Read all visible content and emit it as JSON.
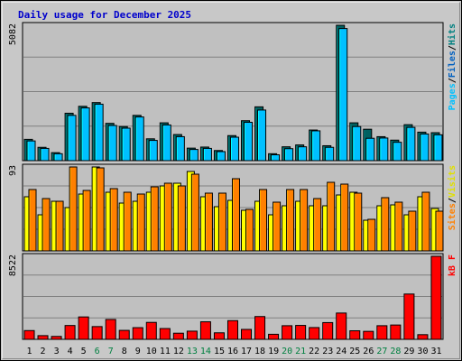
{
  "title": "Daily usage for December 2025",
  "colors": {
    "pages": "#00c0ff",
    "files": "#00a0a0",
    "hits": "#006060",
    "sites": "#ffff00",
    "visits": "#ff8000",
    "kbytes": "#ff0000",
    "day_weekend": "#008040",
    "day_weekday": "#000000",
    "title": "#0000cc"
  },
  "chart_data": [
    {
      "type": "bar",
      "panel": "hits",
      "ymax_label": "5082",
      "ylim": [
        0,
        5082
      ],
      "legend": [
        {
          "label": "Pages",
          "color": "#00c0ff"
        },
        {
          "label": "/",
          "color": "#000000"
        },
        {
          "label": "Files",
          "color": "#0060c0"
        },
        {
          "label": "/",
          "color": "#000000"
        },
        {
          "label": "Hits",
          "color": "#008080"
        }
      ],
      "categories": [
        "1",
        "2",
        "3",
        "4",
        "5",
        "6",
        "7",
        "8",
        "9",
        "10",
        "11",
        "12",
        "13",
        "14",
        "15",
        "16",
        "17",
        "18",
        "19",
        "20",
        "21",
        "22",
        "23",
        "24",
        "25",
        "26",
        "27",
        "28",
        "29",
        "30",
        "31"
      ],
      "series": [
        {
          "name": "Hits",
          "values": [
            800,
            500,
            300,
            1780,
            2040,
            2180,
            1400,
            1280,
            1700,
            820,
            1420,
            980,
            470,
            510,
            380,
            940,
            1500,
            2020,
            260,
            520,
            590,
            1150,
            560,
            5082,
            1420,
            1180,
            900,
            770,
            1350,
            1070,
            1050
          ]
        },
        {
          "name": "Files",
          "values": [
            740,
            460,
            260,
            1700,
            1980,
            2120,
            1320,
            1220,
            1640,
            760,
            1340,
            900,
            420,
            460,
            340,
            880,
            1440,
            1900,
            220,
            450,
            520,
            1120,
            500,
            4960,
            1280,
            840,
            850,
            690,
            1250,
            1000,
            970
          ]
        }
      ]
    },
    {
      "type": "bar",
      "panel": "visits",
      "ymax_label": "93",
      "ylim": [
        0,
        93
      ],
      "legend": [
        {
          "label": "Sites",
          "color": "#ff8000"
        },
        {
          "label": "/",
          "color": "#000000"
        },
        {
          "label": "Visits",
          "color": "#e0e000"
        }
      ],
      "categories": [
        "1",
        "2",
        "3",
        "4",
        "5",
        "6",
        "7",
        "8",
        "9",
        "10",
        "11",
        "12",
        "13",
        "14",
        "15",
        "16",
        "17",
        "18",
        "19",
        "20",
        "21",
        "22",
        "23",
        "24",
        "25",
        "26",
        "27",
        "28",
        "29",
        "30",
        "31"
      ],
      "series": [
        {
          "name": "Visits",
          "values": [
            60,
            40,
            55,
            48,
            63,
            93,
            65,
            53,
            55,
            65,
            72,
            75,
            88,
            60,
            49,
            56,
            45,
            55,
            40,
            50,
            55,
            50,
            50,
            62,
            65,
            34,
            50,
            51,
            40,
            60,
            47
          ]
        },
        {
          "name": "Sites",
          "values": [
            68,
            58,
            55,
            93,
            67,
            92,
            69,
            65,
            63,
            71,
            75,
            72,
            85,
            64,
            64,
            80,
            46,
            68,
            54,
            68,
            68,
            58,
            76,
            74,
            64,
            35,
            59,
            54,
            44,
            65,
            44
          ]
        }
      ]
    },
    {
      "type": "bar",
      "panel": "kbytes",
      "ymax_label": "8522",
      "ylim": [
        0,
        8522
      ],
      "legend": [
        {
          "label": "kB F",
          "color": "#ff0000"
        }
      ],
      "categories": [
        "1",
        "2",
        "3",
        "4",
        "5",
        "6",
        "7",
        "8",
        "9",
        "10",
        "11",
        "12",
        "13",
        "14",
        "15",
        "16",
        "17",
        "18",
        "19",
        "20",
        "21",
        "22",
        "23",
        "24",
        "25",
        "26",
        "27",
        "28",
        "29",
        "30",
        "31"
      ],
      "series": [
        {
          "name": "kB F",
          "values": [
            900,
            380,
            300,
            1420,
            2300,
            1310,
            2040,
            920,
            1200,
            1740,
            1110,
            630,
            840,
            1800,
            670,
            1920,
            1020,
            2340,
            520,
            1400,
            1430,
            1210,
            1720,
            2700,
            880,
            820,
            1400,
            1470,
            4650,
            480,
            8522
          ]
        }
      ]
    }
  ],
  "x_days": [
    {
      "label": "1",
      "weekend": false
    },
    {
      "label": "2",
      "weekend": false
    },
    {
      "label": "3",
      "weekend": false
    },
    {
      "label": "4",
      "weekend": false
    },
    {
      "label": "5",
      "weekend": false
    },
    {
      "label": "6",
      "weekend": true
    },
    {
      "label": "7",
      "weekend": true
    },
    {
      "label": "8",
      "weekend": false
    },
    {
      "label": "9",
      "weekend": false
    },
    {
      "label": "10",
      "weekend": false
    },
    {
      "label": "11",
      "weekend": false
    },
    {
      "label": "12",
      "weekend": false
    },
    {
      "label": "13",
      "weekend": true
    },
    {
      "label": "14",
      "weekend": true
    },
    {
      "label": "15",
      "weekend": false
    },
    {
      "label": "16",
      "weekend": false
    },
    {
      "label": "17",
      "weekend": false
    },
    {
      "label": "18",
      "weekend": false
    },
    {
      "label": "19",
      "weekend": false
    },
    {
      "label": "20",
      "weekend": true
    },
    {
      "label": "21",
      "weekend": true
    },
    {
      "label": "22",
      "weekend": false
    },
    {
      "label": "23",
      "weekend": false
    },
    {
      "label": "24",
      "weekend": false
    },
    {
      "label": "25",
      "weekend": false
    },
    {
      "label": "26",
      "weekend": false
    },
    {
      "label": "27",
      "weekend": true
    },
    {
      "label": "28",
      "weekend": true
    },
    {
      "label": "29",
      "weekend": false
    },
    {
      "label": "30",
      "weekend": false
    },
    {
      "label": "31",
      "weekend": false
    }
  ]
}
